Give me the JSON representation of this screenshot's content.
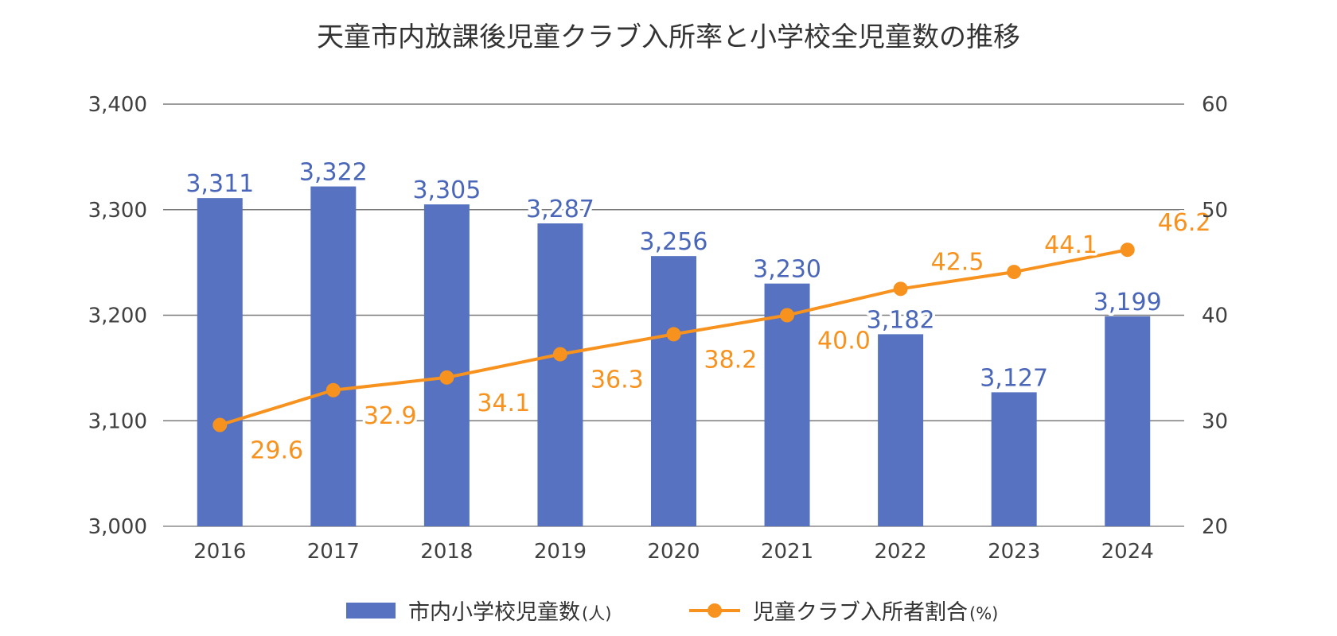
{
  "chart_data": {
    "type": "bar+line",
    "title": "天童市内放課後児童クラブ入所率と小学校全児童数の推移",
    "categories": [
      "2016",
      "2017",
      "2018",
      "2019",
      "2020",
      "2021",
      "2022",
      "2023",
      "2024"
    ],
    "series": [
      {
        "name": "市内小学校児童数",
        "unit": "(人)",
        "type": "bar",
        "axis": "left",
        "color": "#5672C0",
        "label_color": "#4A66B8",
        "values": [
          3311,
          3322,
          3305,
          3287,
          3256,
          3230,
          3182,
          3127,
          3199
        ],
        "labels": [
          "3,311",
          "3,322",
          "3,305",
          "3,287",
          "3,256",
          "3,230",
          "3,182",
          "3,127",
          "3,199"
        ]
      },
      {
        "name": "児童クラブ入所者割合",
        "unit": "(%)",
        "type": "line",
        "axis": "right",
        "color": "#F7921E",
        "values": [
          29.6,
          32.9,
          34.1,
          36.3,
          38.2,
          40.0,
          42.5,
          44.1,
          46.2
        ],
        "labels": [
          "29.6",
          "32.9",
          "34.1",
          "36.3",
          "38.2",
          "40.0",
          "42.5",
          "44.1",
          "46.2"
        ]
      }
    ],
    "y_left": {
      "min": 3000,
      "max": 3400,
      "ticks": [
        3000,
        3100,
        3200,
        3300,
        3400
      ],
      "tick_labels": [
        "3,000",
        "3,100",
        "3,200",
        "3,300",
        "3,400"
      ]
    },
    "y_right": {
      "min": 20,
      "max": 60,
      "ticks": [
        20,
        30,
        40,
        50,
        60
      ],
      "tick_labels": [
        "20",
        "30",
        "40",
        "50",
        "60"
      ]
    },
    "grid": true,
    "legend_position": "bottom"
  }
}
